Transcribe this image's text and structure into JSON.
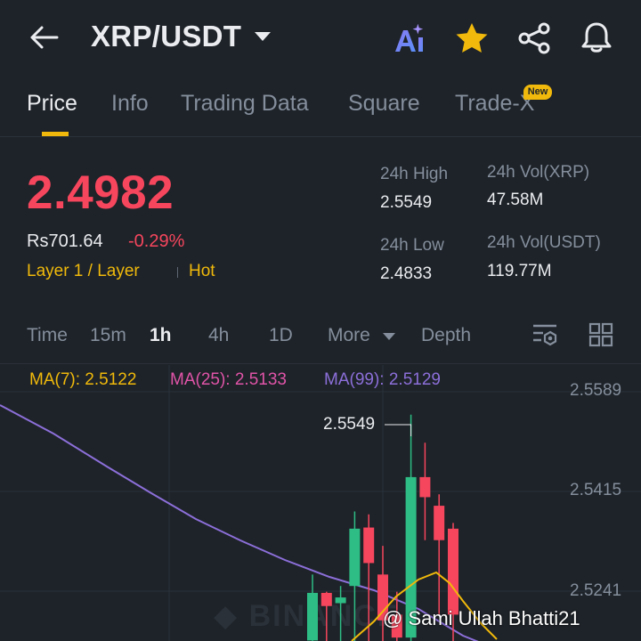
{
  "header": {
    "pair": "XRP/USDT",
    "icons": [
      "back-arrow-icon",
      "ai-icon",
      "star-icon",
      "share-icon",
      "bell-icon"
    ]
  },
  "tabs": [
    {
      "label": "Price",
      "active": true
    },
    {
      "label": "Info"
    },
    {
      "label": "Trading Data"
    },
    {
      "label": "Square"
    },
    {
      "label": "Trade-X",
      "badge": "New"
    }
  ],
  "ticker": {
    "price": "2.4982",
    "price_local": "Rs701.64",
    "change": "-0.29%",
    "tag_category": "Layer 1 / Layer",
    "tag_hot": "Hot",
    "high_label": "24h High",
    "high_value": "2.5549",
    "low_label": "24h Low",
    "low_value": "2.4833",
    "vol_base_label": "24h Vol(XRP)",
    "vol_base_value": "47.58M",
    "vol_quote_label": "24h Vol(USDT)",
    "vol_quote_value": "119.77M"
  },
  "timeframes": {
    "time": "Time",
    "items": [
      "15m",
      "1h",
      "4h",
      "1D"
    ],
    "active": "1h",
    "more": "More",
    "depth": "Depth"
  },
  "indicators": {
    "ma7": "MA(7): 2.5122",
    "ma25": "MA(25): 2.5133",
    "ma99": "MA(99): 2.5129"
  },
  "chart_axis": {
    "y_labels": [
      "2.5589",
      "2.5415",
      "2.5241"
    ],
    "high_marker": "2.5549"
  },
  "watermark": "BINANCE",
  "credit": "@ Sami Ullah Bhatti21",
  "colors": {
    "background": "#1e2329",
    "up": "#2ebd85",
    "down": "#f6465d",
    "accent": "#f0b90b",
    "ma7": "#f0b90b",
    "ma25": "#e054a8",
    "ma99": "#8c6fd9"
  },
  "chart_data": {
    "type": "candlestick",
    "ylim": [
      2.515,
      2.562
    ],
    "candles": [
      {
        "open": 2.5155,
        "close": 2.5238,
        "high": 2.527,
        "low": 2.515
      },
      {
        "open": 2.5238,
        "close": 2.5215,
        "high": 2.524,
        "low": 2.515
      },
      {
        "open": 2.522,
        "close": 2.523,
        "high": 2.525,
        "low": 2.515
      },
      {
        "open": 2.525,
        "close": 2.535,
        "high": 2.538,
        "low": 2.515
      },
      {
        "open": 2.5352,
        "close": 2.529,
        "high": 2.5375,
        "low": 2.515
      },
      {
        "open": 2.527,
        "close": 2.519,
        "high": 2.532,
        "low": 2.515
      },
      {
        "open": 2.52,
        "close": 2.516,
        "high": 2.524,
        "low": 2.515
      },
      {
        "open": 2.516,
        "close": 2.544,
        "high": 2.5549,
        "low": 2.515
      },
      {
        "open": 2.544,
        "close": 2.5405,
        "high": 2.55,
        "low": 2.533
      },
      {
        "open": 2.539,
        "close": 2.533,
        "high": 2.541,
        "low": 2.52
      },
      {
        "open": 2.535,
        "close": 2.52,
        "high": 2.536,
        "low": 2.515
      }
    ]
  }
}
